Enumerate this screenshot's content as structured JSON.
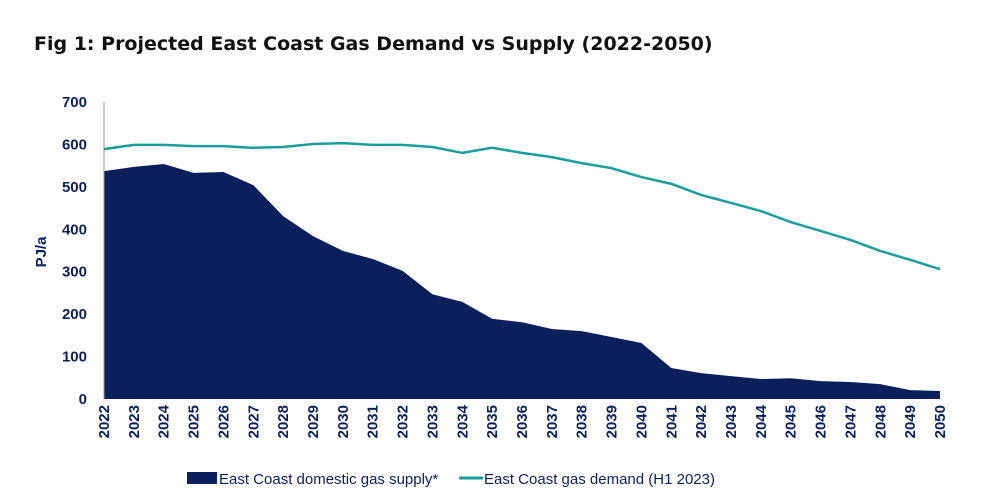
{
  "chart_data": {
    "type": "area",
    "title": "Fig 1: Projected East Coast Gas Demand vs Supply (2022-2050)",
    "ylabel": "PJ/a",
    "xlabel": "",
    "ylim": [
      0,
      700
    ],
    "yticks": [
      "0",
      "100",
      "200",
      "300",
      "400",
      "500",
      "600",
      "700"
    ],
    "grid": false,
    "legend_placement": "bottom",
    "x": [
      "2022",
      "2023",
      "2024",
      "2025",
      "2026",
      "2027",
      "2028",
      "2029",
      "2030",
      "2031",
      "2032",
      "2033",
      "2034",
      "2035",
      "2036",
      "2037",
      "2038",
      "2039",
      "2040",
      "2041",
      "2042",
      "2043",
      "2044",
      "2045",
      "2046",
      "2047",
      "2048",
      "2049",
      "2050"
    ],
    "series": [
      {
        "name": "East Coast domestic gas supply*",
        "kind": "area",
        "color": "#0b1f5c",
        "values": [
          537,
          547,
          554,
          533,
          535,
          504,
          431,
          384,
          349,
          330,
          302,
          247,
          229,
          189,
          181,
          165,
          160,
          146,
          132,
          73,
          61,
          54,
          47,
          49,
          42,
          40,
          35,
          21,
          19
        ]
      },
      {
        "name": "East Coast gas demand (H1 2023)",
        "kind": "line",
        "color": "#1a9e9b",
        "values": [
          589,
          599,
          599,
          596,
          596,
          592,
          594,
          601,
          603,
          599,
          599,
          594,
          580,
          592,
          580,
          570,
          556,
          544,
          523,
          507,
          481,
          462,
          443,
          417,
          396,
          375,
          349,
          328,
          306
        ]
      }
    ]
  }
}
